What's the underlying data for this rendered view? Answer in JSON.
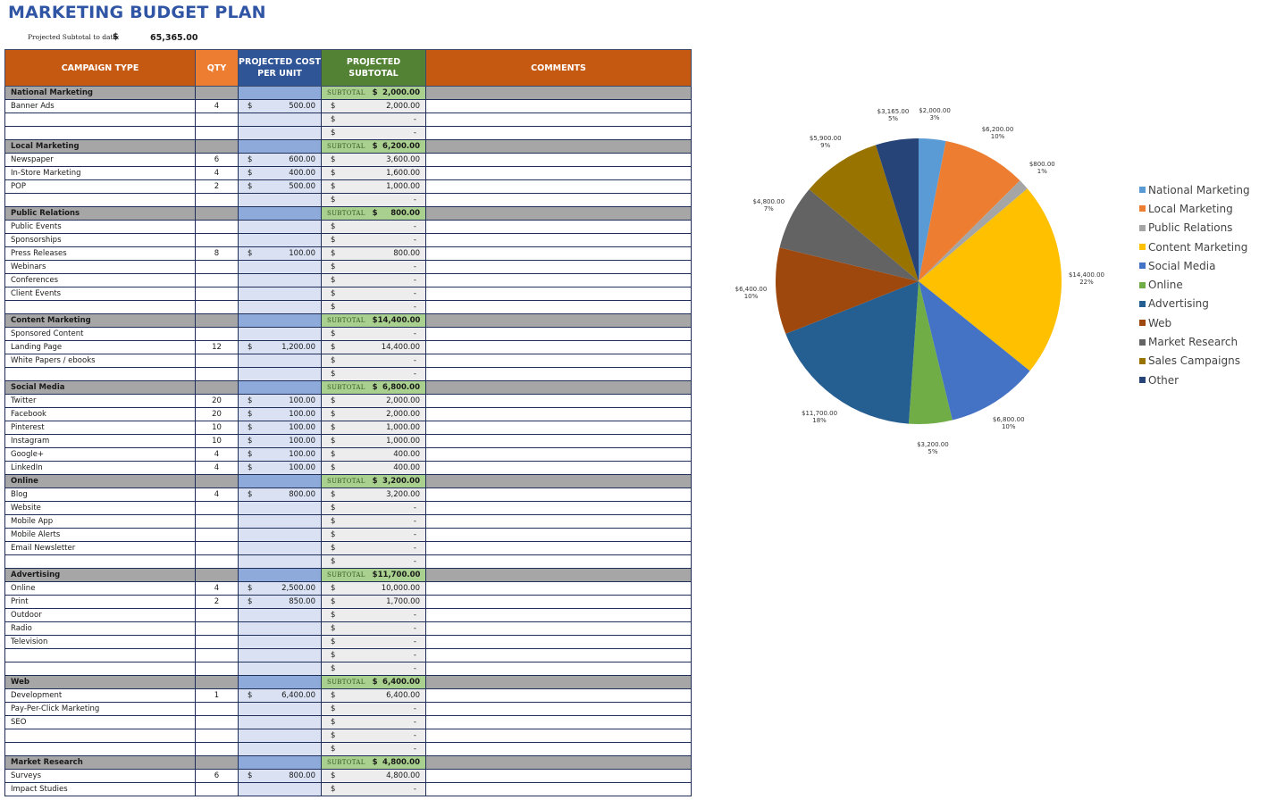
{
  "title": "MARKETING BUDGET PLAN",
  "projected": {
    "label": "Projected Subtotal to date:",
    "currency": "$",
    "value": "65,365.00"
  },
  "headers": {
    "campaign_type": "CAMPAIGN TYPE",
    "qty": "QTY",
    "cost_per_unit_1": "PROJECTED COST",
    "cost_per_unit_2": "PER UNIT",
    "subtotal": "PROJECTED SUBTOTAL",
    "comments": "COMMENTS"
  },
  "subtotal_label": "SUBTOTAL",
  "currency": "$",
  "dash": "-",
  "rows": [
    {
      "type": "cat",
      "name": "National Marketing",
      "subtotal": "2,000.00"
    },
    {
      "type": "item",
      "name": "Banner Ads",
      "qty": "4",
      "cost": "500.00",
      "sub": "2,000.00"
    },
    {
      "type": "item",
      "name": "",
      "qty": "",
      "cost": "",
      "sub": "-"
    },
    {
      "type": "item",
      "name": "",
      "qty": "",
      "cost": "",
      "sub": "-"
    },
    {
      "type": "cat",
      "name": "Local Marketing",
      "subtotal": "6,200.00"
    },
    {
      "type": "item",
      "name": "Newspaper",
      "qty": "6",
      "cost": "600.00",
      "sub": "3,600.00"
    },
    {
      "type": "item",
      "name": "In-Store Marketing",
      "qty": "4",
      "cost": "400.00",
      "sub": "1,600.00"
    },
    {
      "type": "item",
      "name": "POP",
      "qty": "2",
      "cost": "500.00",
      "sub": "1,000.00"
    },
    {
      "type": "item",
      "name": "",
      "qty": "",
      "cost": "",
      "sub": "-"
    },
    {
      "type": "cat",
      "name": "Public Relations",
      "subtotal": "800.00"
    },
    {
      "type": "item",
      "name": "Public Events",
      "qty": "",
      "cost": "",
      "sub": "-"
    },
    {
      "type": "item",
      "name": "Sponsorships",
      "qty": "",
      "cost": "",
      "sub": "-"
    },
    {
      "type": "item",
      "name": "Press Releases",
      "qty": "8",
      "cost": "100.00",
      "sub": "800.00"
    },
    {
      "type": "item",
      "name": "Webinars",
      "qty": "",
      "cost": "",
      "sub": "-"
    },
    {
      "type": "item",
      "name": "Conferences",
      "qty": "",
      "cost": "",
      "sub": "-"
    },
    {
      "type": "item",
      "name": "Client Events",
      "qty": "",
      "cost": "",
      "sub": "-"
    },
    {
      "type": "item",
      "name": "",
      "qty": "",
      "cost": "",
      "sub": "-"
    },
    {
      "type": "cat",
      "name": "Content Marketing",
      "subtotal": "14,400.00"
    },
    {
      "type": "item",
      "name": "Sponsored Content",
      "qty": "",
      "cost": "",
      "sub": "-"
    },
    {
      "type": "item",
      "name": "Landing Page",
      "qty": "12",
      "cost": "1,200.00",
      "sub": "14,400.00"
    },
    {
      "type": "item",
      "name": "White Papers / ebooks",
      "qty": "",
      "cost": "",
      "sub": "-"
    },
    {
      "type": "item",
      "name": "",
      "qty": "",
      "cost": "",
      "sub": "-"
    },
    {
      "type": "cat",
      "name": "Social Media",
      "subtotal": "6,800.00"
    },
    {
      "type": "item",
      "name": "Twitter",
      "qty": "20",
      "cost": "100.00",
      "sub": "2,000.00"
    },
    {
      "type": "item",
      "name": "Facebook",
      "qty": "20",
      "cost": "100.00",
      "sub": "2,000.00"
    },
    {
      "type": "item",
      "name": "Pinterest",
      "qty": "10",
      "cost": "100.00",
      "sub": "1,000.00"
    },
    {
      "type": "item",
      "name": "Instagram",
      "qty": "10",
      "cost": "100.00",
      "sub": "1,000.00"
    },
    {
      "type": "item",
      "name": "Google+",
      "qty": "4",
      "cost": "100.00",
      "sub": "400.00"
    },
    {
      "type": "item",
      "name": "LinkedIn",
      "qty": "4",
      "cost": "100.00",
      "sub": "400.00"
    },
    {
      "type": "cat",
      "name": "Online",
      "subtotal": "3,200.00"
    },
    {
      "type": "item",
      "name": "Blog",
      "qty": "4",
      "cost": "800.00",
      "sub": "3,200.00"
    },
    {
      "type": "item",
      "name": "Website",
      "qty": "",
      "cost": "",
      "sub": "-"
    },
    {
      "type": "item",
      "name": "Mobile App",
      "qty": "",
      "cost": "",
      "sub": "-"
    },
    {
      "type": "item",
      "name": "Mobile Alerts",
      "qty": "",
      "cost": "",
      "sub": "-"
    },
    {
      "type": "item",
      "name": "Email Newsletter",
      "qty": "",
      "cost": "",
      "sub": "-"
    },
    {
      "type": "item",
      "name": "",
      "qty": "",
      "cost": "",
      "sub": "-"
    },
    {
      "type": "cat",
      "name": "Advertising",
      "subtotal": "11,700.00"
    },
    {
      "type": "item",
      "name": "Online",
      "qty": "4",
      "cost": "2,500.00",
      "sub": "10,000.00"
    },
    {
      "type": "item",
      "name": "Print",
      "qty": "2",
      "cost": "850.00",
      "sub": "1,700.00"
    },
    {
      "type": "item",
      "name": "Outdoor",
      "qty": "",
      "cost": "",
      "sub": "-"
    },
    {
      "type": "item",
      "name": "Radio",
      "qty": "",
      "cost": "",
      "sub": "-"
    },
    {
      "type": "item",
      "name": "Television",
      "qty": "",
      "cost": "",
      "sub": "-"
    },
    {
      "type": "item",
      "name": "",
      "qty": "",
      "cost": "",
      "sub": "-"
    },
    {
      "type": "item",
      "name": "",
      "qty": "",
      "cost": "",
      "sub": "-"
    },
    {
      "type": "cat",
      "name": "Web",
      "subtotal": "6,400.00"
    },
    {
      "type": "item",
      "name": "Development",
      "qty": "1",
      "cost": "6,400.00",
      "sub": "6,400.00"
    },
    {
      "type": "item",
      "name": "Pay-Per-Click Marketing",
      "qty": "",
      "cost": "",
      "sub": "-"
    },
    {
      "type": "item",
      "name": "SEO",
      "qty": "",
      "cost": "",
      "sub": "-"
    },
    {
      "type": "item",
      "name": "",
      "qty": "",
      "cost": "",
      "sub": "-"
    },
    {
      "type": "item",
      "name": "",
      "qty": "",
      "cost": "",
      "sub": "-"
    },
    {
      "type": "cat",
      "name": "Market Research",
      "subtotal": "4,800.00"
    },
    {
      "type": "item",
      "name": "Surveys",
      "qty": "6",
      "cost": "800.00",
      "sub": "4,800.00"
    },
    {
      "type": "item",
      "name": "Impact Studies",
      "qty": "",
      "cost": "",
      "sub": "-"
    }
  ],
  "chart_data": {
    "type": "pie",
    "title": "",
    "categories": [
      "National Marketing",
      "Local Marketing",
      "Public Relations",
      "Content Marketing",
      "Social Media",
      "Online",
      "Advertising",
      "Web",
      "Market Research",
      "Sales Campaigns",
      "Other"
    ],
    "values": [
      2000,
      6200,
      800,
      14400,
      6800,
      3200,
      11700,
      6400,
      4800,
      5900,
      3165
    ],
    "value_labels": [
      "$2,000.00",
      "$6,200.00",
      "$800.00",
      "$14,400.00",
      "$6,800.00",
      "$3,200.00",
      "$11,700.00",
      "$6,400.00",
      "$4,800.00",
      "$5,900.00",
      "$3,165.00"
    ],
    "percent_labels": [
      "3%",
      "10%",
      "1%",
      "22%",
      "10%",
      "5%",
      "18%",
      "10%",
      "7%",
      "9%",
      "5%"
    ],
    "colors": [
      "#5b9bd5",
      "#ed7d31",
      "#a5a5a5",
      "#ffc000",
      "#4472c4",
      "#70ad47",
      "#255e91",
      "#9e480e",
      "#636363",
      "#997300",
      "#264478"
    ],
    "legend_position": "right"
  }
}
